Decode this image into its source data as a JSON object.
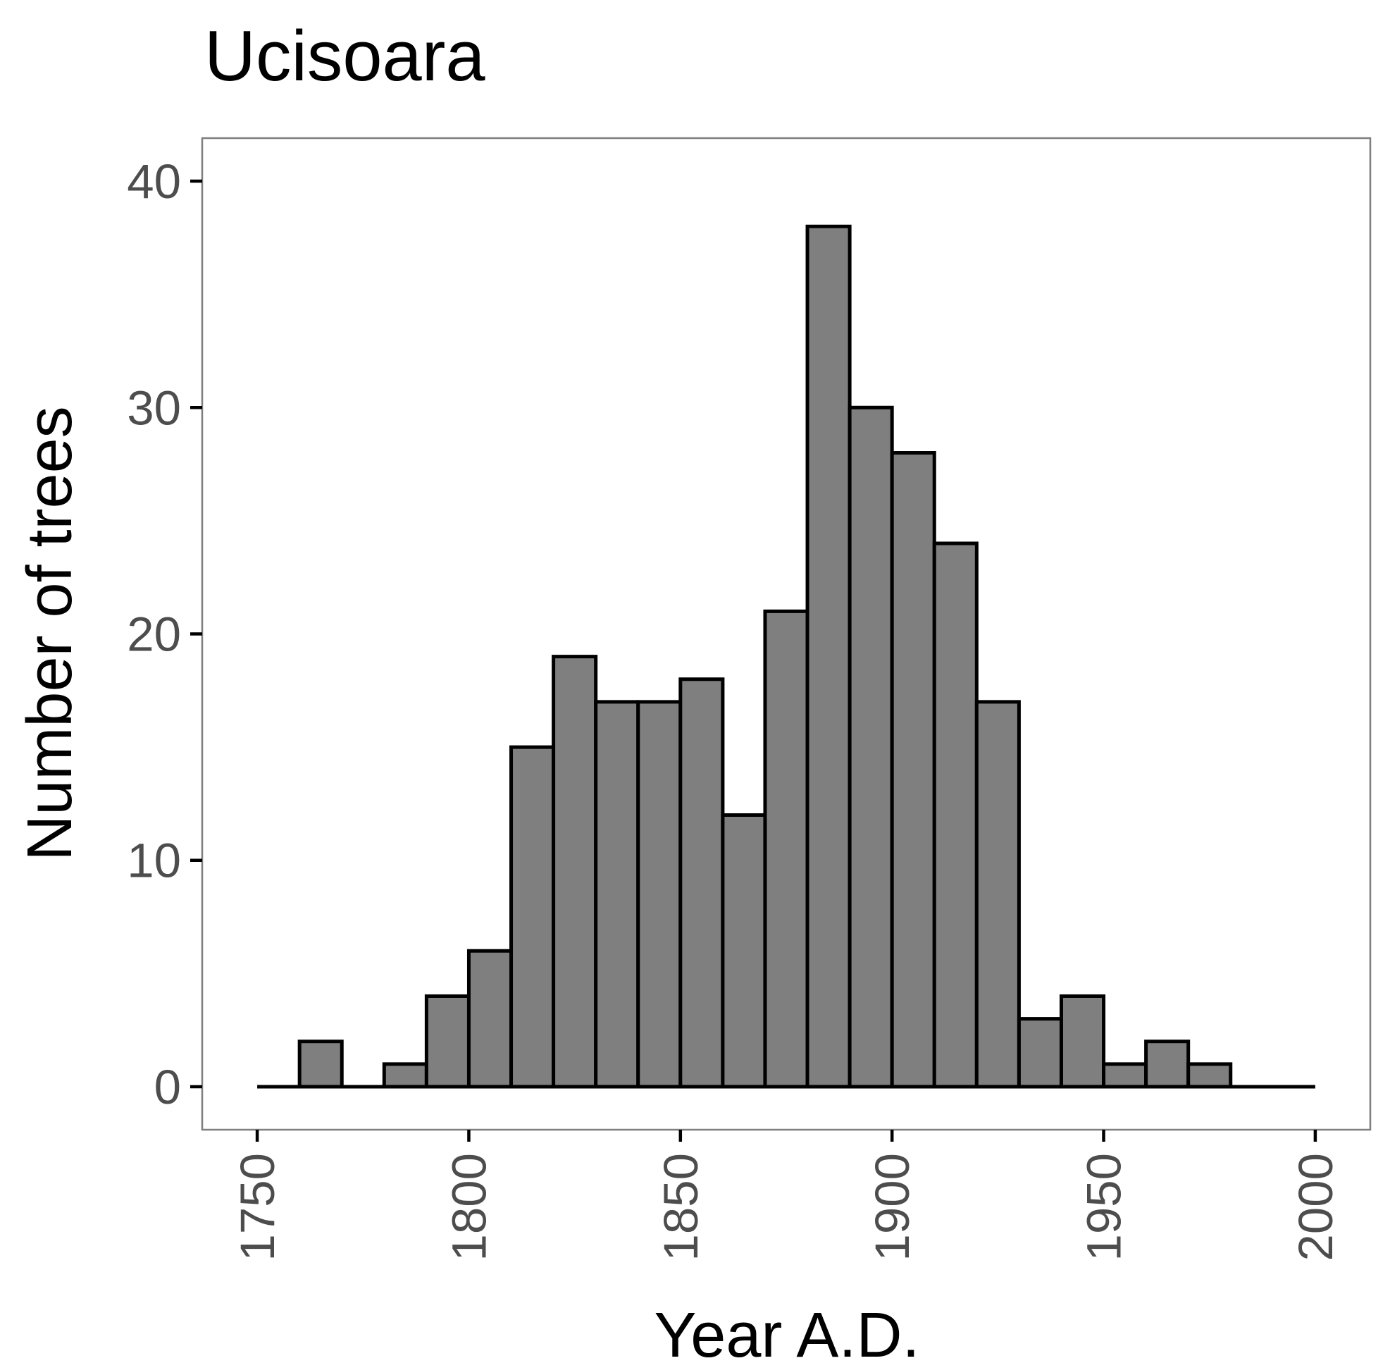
{
  "chart_data": {
    "type": "bar",
    "title": "Ucisoara",
    "xlabel": "Year A.D.",
    "ylabel": "Number of trees",
    "xlim": [
      1737,
      2013
    ],
    "ylim": [
      -1.9,
      41.9
    ],
    "x_ticks": [
      "1750",
      "1800",
      "1850",
      "1900",
      "1950",
      "2000"
    ],
    "y_ticks": [
      "0",
      "10",
      "20",
      "30",
      "40"
    ],
    "bin_width": 10,
    "x_range": [
      1750,
      2000
    ],
    "bins": [
      {
        "start": 1750,
        "end": 1760,
        "count": 0
      },
      {
        "start": 1760,
        "end": 1770,
        "count": 2
      },
      {
        "start": 1770,
        "end": 1780,
        "count": 0
      },
      {
        "start": 1780,
        "end": 1790,
        "count": 1
      },
      {
        "start": 1790,
        "end": 1800,
        "count": 4
      },
      {
        "start": 1800,
        "end": 1810,
        "count": 6
      },
      {
        "start": 1810,
        "end": 1820,
        "count": 15
      },
      {
        "start": 1820,
        "end": 1830,
        "count": 19
      },
      {
        "start": 1830,
        "end": 1840,
        "count": 17
      },
      {
        "start": 1840,
        "end": 1850,
        "count": 17
      },
      {
        "start": 1850,
        "end": 1860,
        "count": 18
      },
      {
        "start": 1860,
        "end": 1870,
        "count": 12
      },
      {
        "start": 1870,
        "end": 1880,
        "count": 21
      },
      {
        "start": 1880,
        "end": 1890,
        "count": 38
      },
      {
        "start": 1890,
        "end": 1900,
        "count": 30
      },
      {
        "start": 1900,
        "end": 1910,
        "count": 28
      },
      {
        "start": 1910,
        "end": 1920,
        "count": 24
      },
      {
        "start": 1920,
        "end": 1930,
        "count": 17
      },
      {
        "start": 1930,
        "end": 1940,
        "count": 3
      },
      {
        "start": 1940,
        "end": 1950,
        "count": 4
      },
      {
        "start": 1950,
        "end": 1960,
        "count": 1
      },
      {
        "start": 1960,
        "end": 1970,
        "count": 2
      },
      {
        "start": 1970,
        "end": 1980,
        "count": 1
      },
      {
        "start": 1980,
        "end": 1990,
        "count": 0
      },
      {
        "start": 1990,
        "end": 2000,
        "count": 0
      }
    ],
    "bar_fill": "#7f7f7f",
    "bar_outline": "#000000",
    "grid": false,
    "legend": "none"
  }
}
